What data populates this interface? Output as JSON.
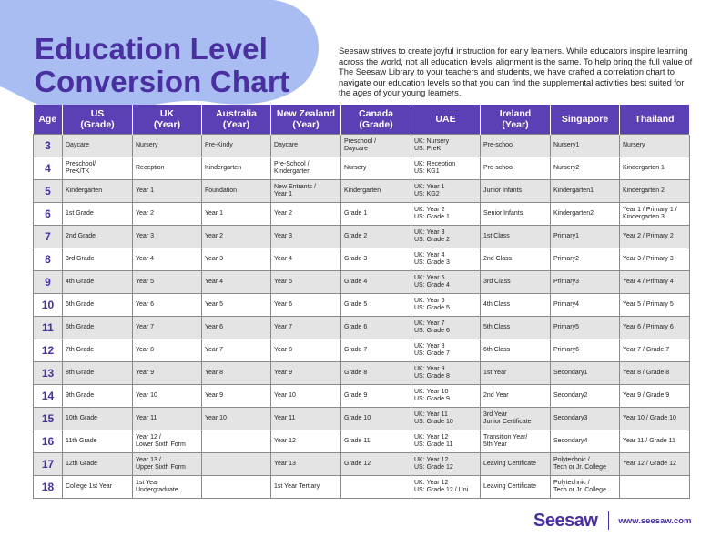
{
  "header": {
    "title": "Education Level\nConversion Chart",
    "intro": "Seesaw strives to create joyful instruction for early learners. While educators inspire learning across the world, not all education levels' alignment is the same. To help bring the full value of The Seesaw Library to your teachers and students, we have crafted a correlation chart to navigate our education levels so that you can find the supplemental activities best suited for the ages of your young learners."
  },
  "table": {
    "columns": [
      {
        "name": "Age"
      },
      {
        "name": "US",
        "unit": "(Grade)"
      },
      {
        "name": "UK",
        "unit": "(Year)"
      },
      {
        "name": "Australia",
        "unit": "(Year)"
      },
      {
        "name": "New Zealand",
        "unit": "(Year)"
      },
      {
        "name": "Canada",
        "unit": "(Grade)"
      },
      {
        "name": "UAE"
      },
      {
        "name": "Ireland",
        "unit": "(Year)"
      },
      {
        "name": "Singapore"
      },
      {
        "name": "Thailand"
      }
    ],
    "rows": [
      [
        3,
        "Daycare",
        "Nursery",
        "Pre-Kindy",
        "Daycare",
        "Preschool /\nDaycare",
        "UK: Nursery\nUS: PreK",
        "Pre-school",
        "Nursery1",
        "Nursery"
      ],
      [
        4,
        "Preschool/\nPreK/TK",
        "Reception",
        "Kindergarten",
        "Pre-School /\nKindergarten",
        "Nursery",
        "UK: Reception\nUS: KG1",
        "Pre-school",
        "Nursery2",
        "Kindergarten 1"
      ],
      [
        5,
        "Kindergarten",
        "Year 1",
        "Foundation",
        "New Entrants /\nYear 1",
        "Kindergarten",
        "UK: Year 1\nUS: KG2",
        "Junior Infants",
        "Kindergarten1",
        "Kindergarten 2"
      ],
      [
        6,
        "1st Grade",
        "Year 2",
        "Year 1",
        "Year 2",
        "Grade 1",
        "UK: Year 2\nUS: Grade 1",
        "Senior Infants",
        "Kindergarten2",
        "Year 1 / Primary 1 /\nKindergarten 3"
      ],
      [
        7,
        "2nd Grade",
        "Year 3",
        "Year 2",
        "Year 3",
        "Grade 2",
        "UK: Year 3\nUS: Grade 2",
        "1st Class",
        "Primary1",
        "Year 2 / Primary 2"
      ],
      [
        8,
        "3rd Grade",
        "Year 4",
        "Year 3",
        "Year 4",
        "Grade 3",
        "UK: Year 4\nUS: Grade 3",
        "2nd Class",
        "Primary2",
        "Year 3 / Primary 3"
      ],
      [
        9,
        "4th Grade",
        "Year 5",
        "Year 4",
        "Year 5",
        "Grade 4",
        "UK: Year 5\nUS: Grade 4",
        "3rd Class",
        "Primary3",
        "Year 4 / Primary 4"
      ],
      [
        10,
        "5th Grade",
        "Year 6",
        "Year 5",
        "Year 6",
        "Grade 5",
        "UK: Year 6\nUS: Grade 5",
        "4th Class",
        "Primary4",
        "Year 5 / Primary 5"
      ],
      [
        11,
        "6th Grade",
        "Year 7",
        "Year 6",
        "Year 7",
        "Grade 6",
        "UK: Year 7\nUS: Grade 6",
        "5th Class",
        "Primary5",
        "Year 6 / Primary 6"
      ],
      [
        12,
        "7th Grade",
        "Year 8",
        "Year 7",
        "Year 8",
        "Grade 7",
        "UK: Year 8\nUS: Grade 7",
        "6th Class",
        "Primary6",
        "Year 7 / Grade 7"
      ],
      [
        13,
        "8th Grade",
        "Year 9",
        "Year 8",
        "Year 9",
        "Grade 8",
        "UK: Year 9\nUS: Grade 8",
        "1st Year",
        "Secondary1",
        "Year 8 / Grade 8"
      ],
      [
        14,
        "9th Grade",
        "Year 10",
        "Year 9",
        "Year 10",
        "Grade 9",
        "UK: Year 10\nUS: Grade 9",
        "2nd Year",
        "Secondary2",
        "Year 9 / Grade 9"
      ],
      [
        15,
        "10th Grade",
        "Year 11",
        "Year 10",
        "Year 11",
        "Grade 10",
        "UK: Year 11\nUS: Grade 10",
        "3rd Year\nJunior Certificate",
        "Secondary3",
        "Year 10 / Grade 10"
      ],
      [
        16,
        "11th Grade",
        "Year 12 /\nLower Sixth Form",
        null,
        "Year 12",
        "Grade 11",
        "UK: Year 12\nUS: Grade 11",
        "Transition Year/\n5th Year",
        "Secondary4",
        "Year 11 / Grade 11"
      ],
      [
        17,
        "12th Grade",
        "Year 13 /\nUpper Sixth Form",
        null,
        "Year 13",
        "Grade 12",
        "UK: Year 12\nUS: Grade 12",
        "Leaving Certificate",
        "Polytechnic /\nTech or Jr. College",
        "Year 12 / Grade 12"
      ],
      [
        18,
        "College 1st Year",
        "1st Year\nUndergraduate",
        null,
        "1st Year Tertiary",
        null,
        "UK: Year 12\nUS: Grade 12 / Uni",
        "Leaving Certificate",
        "Polytechnic /\nTech or Jr. College",
        null
      ]
    ]
  },
  "footer": {
    "logo": "Seesaw",
    "url": "www.seesaw.com"
  }
}
